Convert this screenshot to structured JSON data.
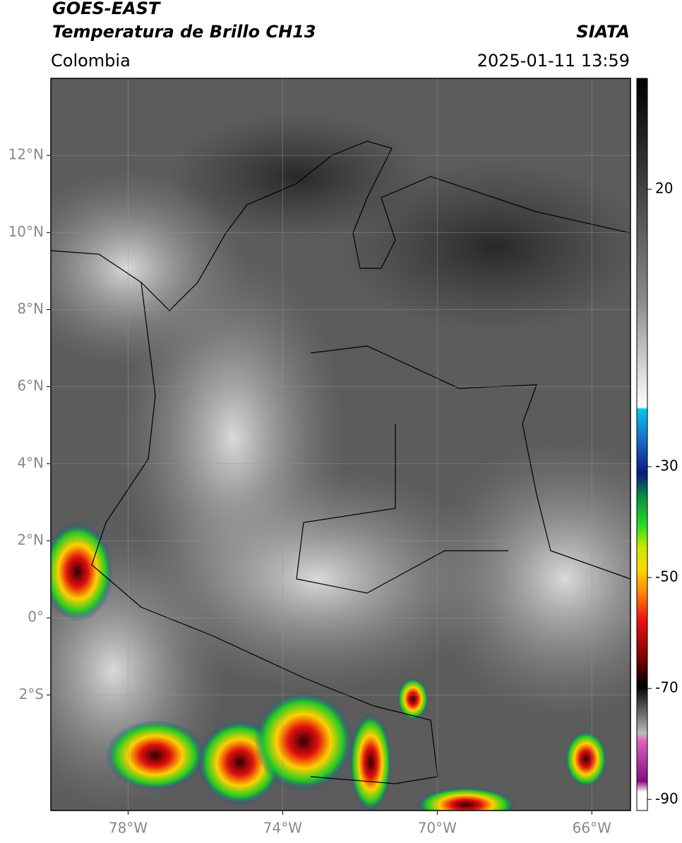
{
  "header": {
    "title": "GOES-EAST",
    "subtitle": "Temperatura de Brillo CH13",
    "source": "SIATA",
    "region": "Colombia",
    "timestamp": "2025-01-11 13:59"
  },
  "map": {
    "xlim": [
      -80,
      -65
    ],
    "ylim": [
      -5,
      14
    ],
    "xticks": [
      {
        "value": -78,
        "label": "78°W"
      },
      {
        "value": -74,
        "label": "74°W"
      },
      {
        "value": -70,
        "label": "70°W"
      },
      {
        "value": -66,
        "label": "66°W"
      }
    ],
    "yticks": [
      {
        "value": 12,
        "label": "12°N"
      },
      {
        "value": 10,
        "label": "10°N"
      },
      {
        "value": 8,
        "label": "8°N"
      },
      {
        "value": 6,
        "label": "6°N"
      },
      {
        "value": 4,
        "label": "4°N"
      },
      {
        "value": 2,
        "label": "2°N"
      },
      {
        "value": 0,
        "label": "0°"
      },
      {
        "value": -2,
        "label": "2°S"
      }
    ],
    "grid": true
  },
  "colorbar": {
    "lim": [
      -92,
      40
    ],
    "ticks": [
      20,
      -30,
      -50,
      -70,
      -90
    ]
  }
}
